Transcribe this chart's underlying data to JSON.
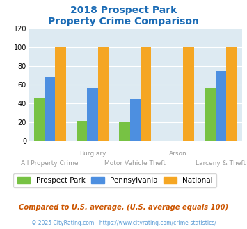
{
  "title_line1": "2018 Prospect Park",
  "title_line2": "Property Crime Comparison",
  "categories": [
    "All Property Crime",
    "Burglary",
    "Motor Vehicle Theft",
    "Arson",
    "Larceny & Theft"
  ],
  "prospect_park": [
    46,
    21,
    20,
    0,
    56
  ],
  "pennsylvania": [
    68,
    56,
    45,
    0,
    74
  ],
  "national": [
    100,
    100,
    100,
    100,
    100
  ],
  "colors": {
    "prospect_park": "#77c244",
    "pennsylvania": "#4d8fe0",
    "national": "#f5a623"
  },
  "ylim": [
    0,
    120
  ],
  "yticks": [
    0,
    20,
    40,
    60,
    80,
    100,
    120
  ],
  "xlabel_top": [
    "",
    "Burglary",
    "",
    "Arson",
    ""
  ],
  "xlabel_bottom": [
    "All Property Crime",
    "",
    "Motor Vehicle Theft",
    "",
    "Larceny & Theft"
  ],
  "legend_labels": [
    "Prospect Park",
    "Pennsylvania",
    "National"
  ],
  "footnote1": "Compared to U.S. average. (U.S. average equals 100)",
  "footnote2": "© 2025 CityRating.com - https://www.cityrating.com/crime-statistics/",
  "bg_color": "#ddeaf2",
  "fig_bg": "#ffffff",
  "title_color": "#1a6bb5",
  "bar_width": 0.25
}
